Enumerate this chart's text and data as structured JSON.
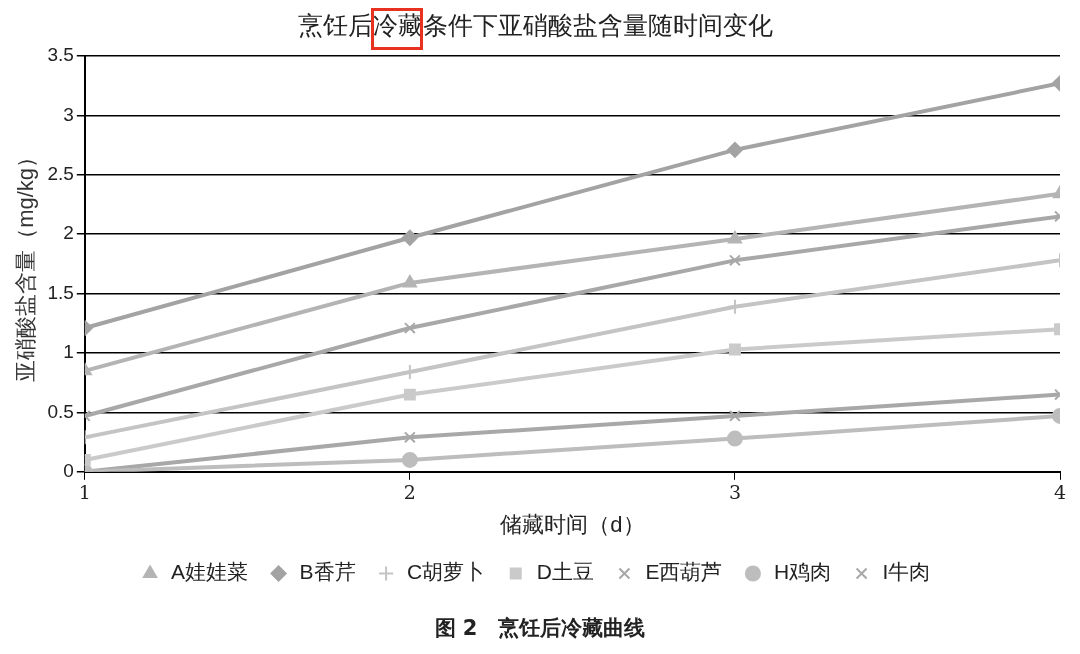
{
  "chart_data": {
    "type": "line",
    "title": "烹饪后冷藏条件下亚硝酸盐含量随时间变化",
    "xlabel": "储藏时间（d）",
    "ylabel": "亚硝酸盐含量（mg/kg）",
    "x": [
      1,
      2,
      3,
      4
    ],
    "xlim": [
      1,
      4
    ],
    "xticks": [
      1,
      2,
      3,
      4
    ],
    "ylim": [
      0,
      3.5
    ],
    "yticks": [
      0,
      0.5,
      1,
      1.5,
      2,
      2.5,
      3,
      3.5
    ],
    "grid": "y",
    "legend": "bottom",
    "line_style": "solid",
    "series": [
      {
        "name": "A娃娃菜",
        "color": "#b4b4b4",
        "marker": "triangle",
        "values": [
          0.85,
          1.59,
          1.96,
          2.34
        ]
      },
      {
        "name": "B香芹",
        "color": "#a3a3a3",
        "marker": "diamond",
        "values": [
          1.21,
          1.97,
          2.71,
          3.27
        ]
      },
      {
        "name": "C胡萝卜",
        "color": "#c4c4c4",
        "marker": "plus",
        "values": [
          0.29,
          0.84,
          1.39,
          1.78
        ]
      },
      {
        "name": "D土豆",
        "color": "#cacaca",
        "marker": "square",
        "values": [
          0.1,
          0.65,
          1.03,
          1.2
        ]
      },
      {
        "name": "E西葫芦",
        "color": "#a8a8a8",
        "marker": "cross",
        "values": [
          0.47,
          1.21,
          1.78,
          2.15
        ]
      },
      {
        "name": "H鸡肉",
        "color": "#bdbdbd",
        "marker": "circle",
        "values": [
          0,
          0.1,
          0.28,
          0.47
        ]
      },
      {
        "name": "I牛肉",
        "color": "#a8a8a8",
        "marker": "cross",
        "values": [
          0,
          0.29,
          0.47,
          0.65
        ]
      }
    ],
    "annotations": [
      "图 2　烹饪后冷藏曲线"
    ]
  }
}
